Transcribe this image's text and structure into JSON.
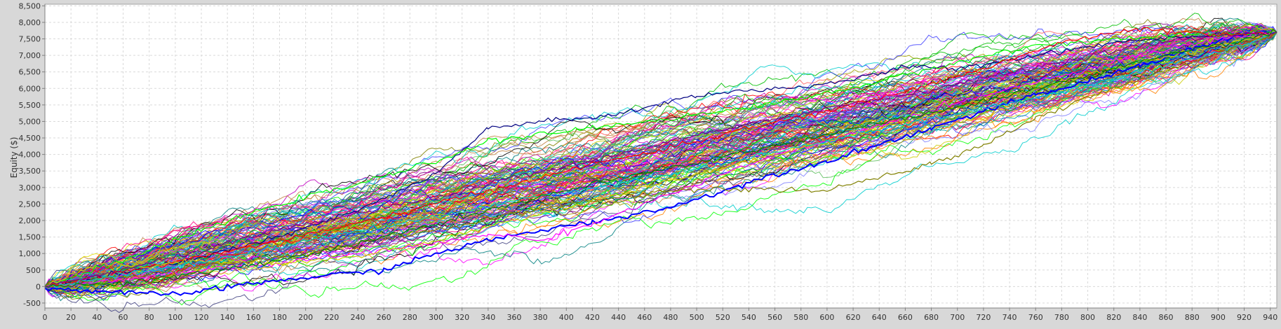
{
  "chart_data": {
    "type": "line",
    "title": "",
    "xlabel": "",
    "ylabel": "Equity ($)",
    "xlim": [
      0,
      945
    ],
    "ylim": [
      -650,
      8550
    ],
    "x_ticks": [
      0,
      20,
      40,
      60,
      80,
      100,
      120,
      140,
      160,
      180,
      200,
      220,
      240,
      260,
      280,
      300,
      320,
      340,
      360,
      380,
      400,
      420,
      440,
      460,
      480,
      500,
      520,
      540,
      560,
      580,
      600,
      620,
      640,
      660,
      680,
      700,
      720,
      740,
      760,
      780,
      800,
      820,
      840,
      860,
      880,
      900,
      920,
      940
    ],
    "y_ticks": [
      -500,
      0,
      500,
      1000,
      1500,
      2000,
      2500,
      3000,
      3500,
      4000,
      4500,
      5000,
      5500,
      6000,
      6500,
      7000,
      7500,
      8000,
      8500
    ],
    "y_tick_labels": [
      "-500",
      "0",
      "500",
      "1,000",
      "1,500",
      "2,000",
      "2,500",
      "3,000",
      "3,500",
      "4,000",
      "4,500",
      "5,000",
      "5,500",
      "6,000",
      "6,500",
      "7,000",
      "7,500",
      "8,000",
      "8,500"
    ],
    "grid": true,
    "legend": "none",
    "colors": [
      "#ff0000",
      "#0000ff",
      "#00c000",
      "#ff00ff",
      "#00cccc",
      "#cccc00",
      "#000000",
      "#808000",
      "#800080",
      "#008080",
      "#ff8000",
      "#8080ff",
      "#00ff00",
      "#ff6060",
      "#404080",
      "#a0a000",
      "#0080ff",
      "#ff0080",
      "#60c060",
      "#c08040",
      "#4040ff",
      "#00a0a0",
      "#c000c0",
      "#e0e000"
    ],
    "series": [
      {
        "color": "#0000ff",
        "x": [
          0,
          40,
          80,
          110,
          160,
          220,
          260,
          300,
          340,
          380,
          420,
          480,
          520,
          560,
          600,
          640,
          680,
          720,
          760,
          800,
          840,
          880,
          920,
          945
        ],
        "y": [
          -50,
          -150,
          -230,
          -200,
          100,
          350,
          500,
          1000,
          1400,
          1700,
          1950,
          2400,
          2900,
          3400,
          3800,
          4300,
          4800,
          5300,
          5800,
          6200,
          6700,
          7200,
          7650,
          7700
        ]
      },
      {
        "color": "#000080",
        "x": [
          0,
          60,
          120,
          180,
          240,
          300,
          340,
          380,
          420,
          460,
          500,
          560,
          600,
          660,
          700,
          760,
          820,
          880,
          945
        ],
        "y": [
          0,
          400,
          900,
          1500,
          2300,
          3400,
          4800,
          5000,
          5100,
          5400,
          5800,
          6000,
          6100,
          6650,
          6600,
          7000,
          7400,
          7600,
          7700
        ]
      },
      {
        "color": "#00ff00",
        "x": [
          0,
          60,
          120,
          180,
          240,
          300,
          340,
          380,
          420,
          460,
          520,
          580,
          640,
          700,
          760,
          820,
          880,
          945
        ],
        "y": [
          0,
          800,
          1700,
          2500,
          3100,
          3800,
          4400,
          4600,
          4800,
          5000,
          5300,
          5700,
          6200,
          6800,
          7300,
          7500,
          7600,
          7700
        ]
      },
      {
        "color": "#ff00ff",
        "x": [
          0,
          60,
          120,
          180,
          240,
          300,
          340,
          360,
          380,
          420,
          480,
          540,
          600,
          660,
          720,
          780,
          840,
          900,
          945
        ],
        "y": [
          0,
          200,
          500,
          700,
          1000,
          1300,
          1600,
          1500,
          1400,
          1900,
          2800,
          3700,
          4400,
          5100,
          5800,
          6400,
          7000,
          7500,
          7700
        ]
      },
      {
        "color": "#ff0000",
        "x": [
          0,
          60,
          120,
          180,
          240,
          300,
          360,
          420,
          480,
          540,
          600,
          660,
          720,
          780,
          840,
          900,
          945
        ],
        "y": [
          0,
          450,
          900,
          1400,
          1900,
          2500,
          3100,
          3700,
          4200,
          4800,
          5300,
          5900,
          6600,
          7400,
          7800,
          7600,
          7700
        ]
      },
      {
        "color": "#808000",
        "x": [
          0,
          60,
          120,
          180,
          240,
          300,
          360,
          420,
          480,
          540,
          600,
          640,
          680,
          720,
          760,
          820,
          880,
          945
        ],
        "y": [
          0,
          300,
          600,
          900,
          1300,
          1700,
          2200,
          2600,
          2900,
          2950,
          2900,
          3300,
          3700,
          4300,
          5100,
          6000,
          6800,
          7700
        ]
      },
      {
        "color": "#cccc00",
        "x": [
          0,
          40,
          80,
          120,
          180,
          240,
          300,
          360,
          420,
          480,
          540,
          600,
          660,
          720,
          780,
          840,
          900,
          945
        ],
        "y": [
          0,
          700,
          600,
          800,
          700,
          900,
          1400,
          2000,
          2600,
          3200,
          3800,
          4400,
          5000,
          5600,
          6200,
          6800,
          7300,
          7700
        ]
      },
      {
        "color": "#00cccc",
        "x": [
          0,
          60,
          120,
          180,
          240,
          300,
          360,
          420,
          480,
          540,
          600,
          660,
          720,
          780,
          840,
          900,
          945
        ],
        "y": [
          0,
          350,
          750,
          1200,
          1700,
          2100,
          2600,
          3000,
          3400,
          3900,
          4400,
          4900,
          5400,
          5900,
          6500,
          7100,
          7700
        ]
      },
      {
        "color": "#008000",
        "x": [
          0,
          60,
          120,
          180,
          240,
          300,
          360,
          420,
          480,
          540,
          600,
          660,
          720,
          780,
          840,
          900,
          945
        ],
        "y": [
          0,
          100,
          400,
          800,
          1300,
          1900,
          2500,
          3100,
          3600,
          4100,
          4600,
          5100,
          5600,
          6200,
          6800,
          7300,
          7700
        ]
      },
      {
        "color": "#800080",
        "x": [
          0,
          60,
          120,
          180,
          240,
          300,
          360,
          420,
          480,
          540,
          600,
          660,
          720,
          780,
          840,
          900,
          945
        ],
        "y": [
          0,
          500,
          1100,
          1700,
          2200,
          2700,
          3300,
          3800,
          4400,
          4900,
          5400,
          5800,
          6300,
          6800,
          7300,
          7600,
          7700
        ]
      }
    ]
  }
}
